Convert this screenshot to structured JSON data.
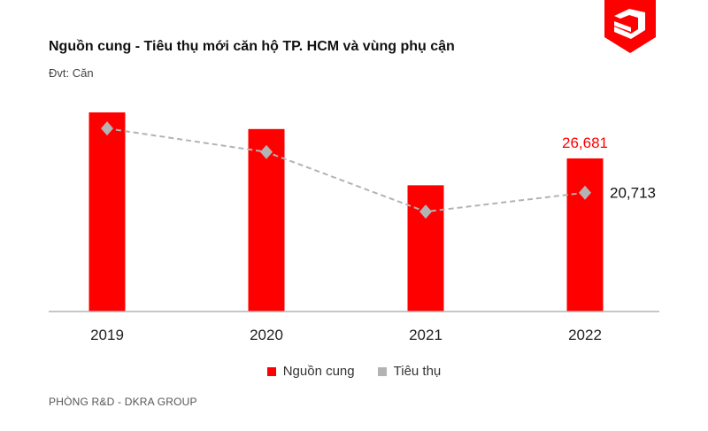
{
  "colors": {
    "supply": "#ff0000",
    "consumption": "#b3b3b3",
    "axis": "#b3b3b3",
    "supply_label": "#ff0000",
    "consumption_label": "#111111"
  },
  "logo": {
    "icon": "dkra-shield-logo"
  },
  "chart_data": {
    "type": "bar",
    "title": "Nguồn cung - Tiêu thụ mới căn hộ TP. HCM và vùng phụ cận",
    "unit": "Đvt: Căn",
    "categories": [
      "2019",
      "2020",
      "2021",
      "2022"
    ],
    "series": [
      {
        "name": "Nguồn cung",
        "type": "bar",
        "values": [
          34700,
          31800,
          22000,
          26681
        ],
        "data_labels": [
          null,
          null,
          null,
          "26,681"
        ]
      },
      {
        "name": "Tiêu thụ",
        "type": "line",
        "style": "dashed",
        "marker": "diamond",
        "values": [
          31900,
          27800,
          17400,
          20713
        ],
        "data_labels": [
          null,
          null,
          null,
          "20,713"
        ]
      }
    ],
    "ylim": [
      0,
      36000
    ],
    "grid": false,
    "legend": "bottom-center"
  },
  "footer": {
    "source": "PHÒNG R&D - DKRA GROUP"
  }
}
